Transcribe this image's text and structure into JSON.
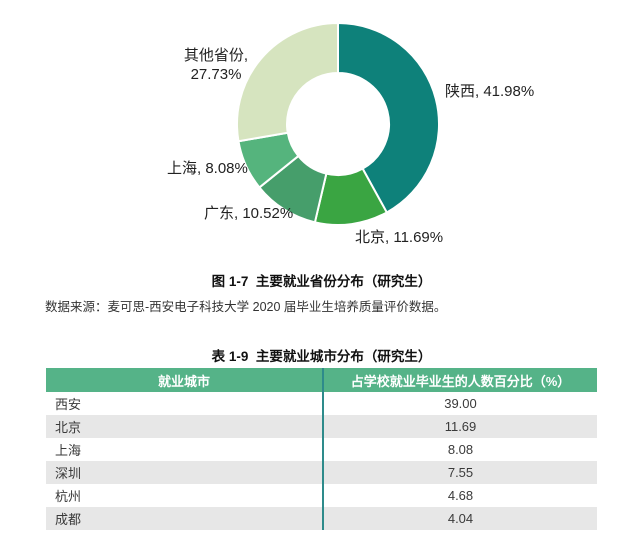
{
  "chart_data": {
    "type": "pie",
    "donut": true,
    "categories": [
      "陕西",
      "北京",
      "广东",
      "上海",
      "其他省份"
    ],
    "values": [
      41.98,
      11.69,
      10.52,
      8.08,
      27.73
    ],
    "unit": "%",
    "colors": [
      "#0e817a",
      "#3aa542",
      "#469e6b",
      "#55b47d",
      "#d6e4bf"
    ],
    "labels": [
      "陕西, 41.98%",
      "北京, 11.69%",
      "广东, 10.52%",
      "上海, 8.08%",
      "其他省份,\n27.73%"
    ],
    "start_angle_deg": 0,
    "direction": "clockwise",
    "legend_position": "none",
    "title": "图 1-7  主要就业省份分布（研究生）"
  },
  "figure": {
    "caption": "图 1-7  主要就业省份分布（研究生）",
    "source": "数据来源：麦可思-西安电子科技大学 2020 届毕业生培养质量评价数据。"
  },
  "table": {
    "title": "表 1-9  主要就业城市分布（研究生）",
    "header_bg": "#55b388",
    "divider_color": "#2e8b8b",
    "shaded_row_bg": "#e7e7e7",
    "columns": [
      "就业城市",
      "占学校就业毕业生的人数百分比（%）"
    ],
    "rows": [
      {
        "city": "西安",
        "percent": "39.00"
      },
      {
        "city": "北京",
        "percent": "11.69"
      },
      {
        "city": "上海",
        "percent": "8.08"
      },
      {
        "city": "深圳",
        "percent": "7.55"
      },
      {
        "city": "杭州",
        "percent": "4.68"
      },
      {
        "city": "成都",
        "percent": "4.04"
      }
    ]
  }
}
